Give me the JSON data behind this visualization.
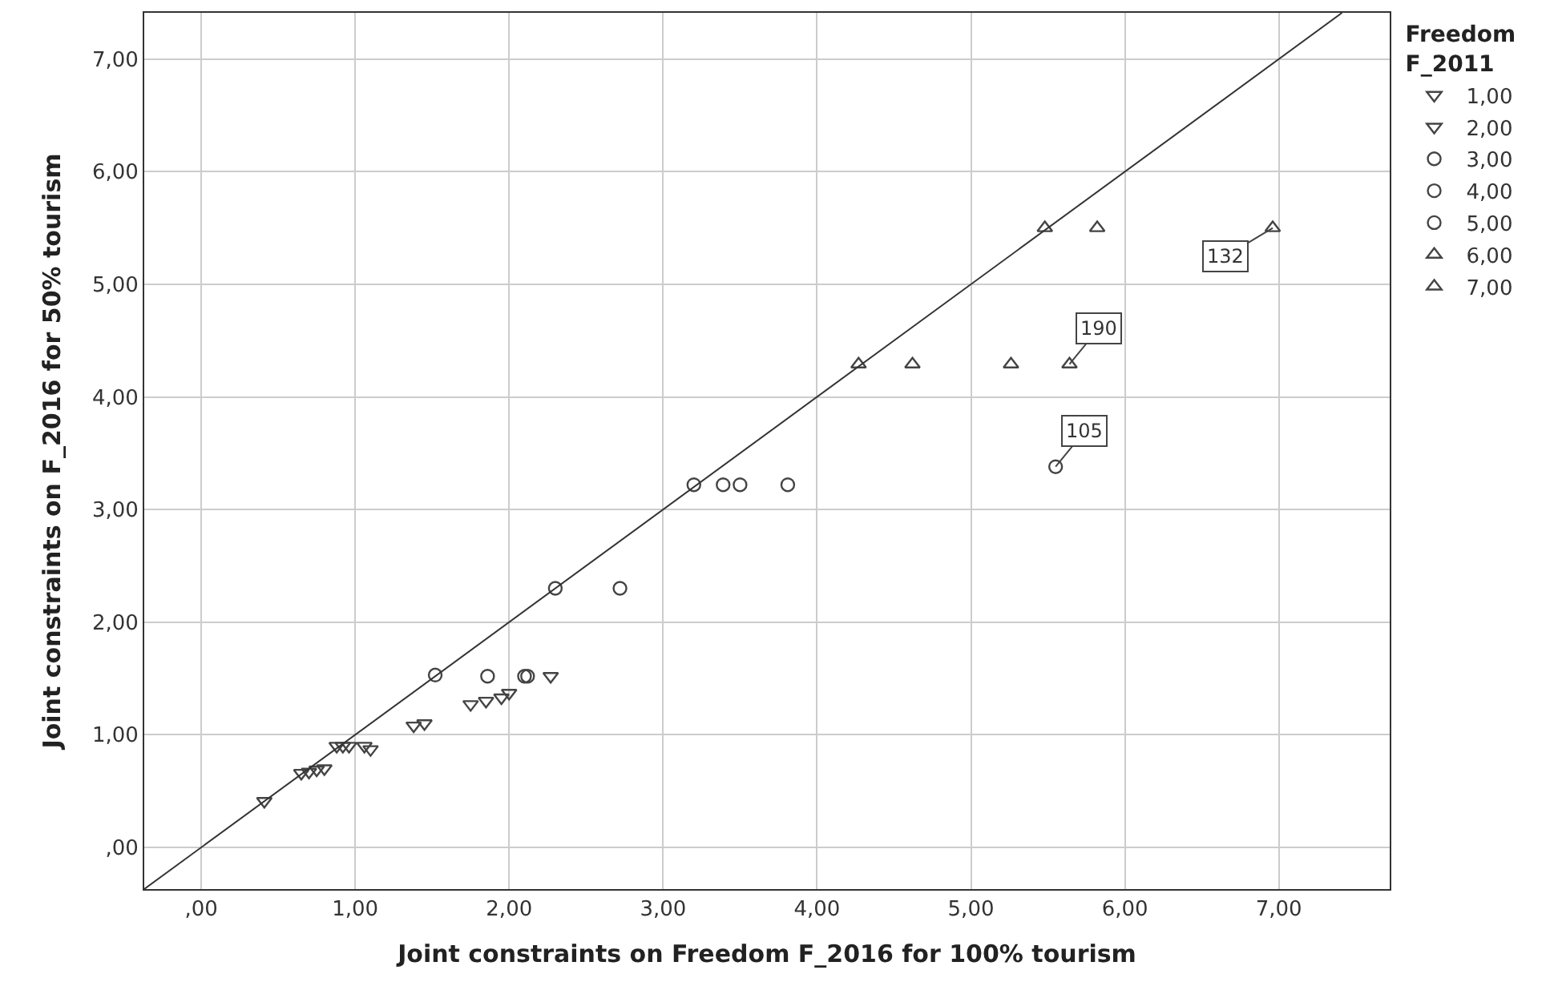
{
  "chart_data": {
    "type": "scatter",
    "xlabel": "Joint constraints on Freedom F_2016 for 100% tourism",
    "ylabel": "Joint constraints on F_2016 for 50% tourism",
    "legend_title": "Freedom\nF_2011",
    "legend": "top right",
    "grid": true,
    "xlim": [
      -0.37,
      7.72
    ],
    "ylim": [
      -0.37,
      7.41
    ],
    "xticks": [
      {
        "value": 0,
        "label": ",00"
      },
      {
        "value": 1,
        "label": "1,00"
      },
      {
        "value": 2,
        "label": "2,00"
      },
      {
        "value": 3,
        "label": "3,00"
      },
      {
        "value": 4,
        "label": "4,00"
      },
      {
        "value": 5,
        "label": "5,00"
      },
      {
        "value": 6,
        "label": "6,00"
      },
      {
        "value": 7,
        "label": "7,00"
      }
    ],
    "yticks": [
      {
        "value": 0,
        "label": ",00"
      },
      {
        "value": 1,
        "label": "1,00"
      },
      {
        "value": 2,
        "label": "2,00"
      },
      {
        "value": 3,
        "label": "3,00"
      },
      {
        "value": 4,
        "label": "4,00"
      },
      {
        "value": 5,
        "label": "5,00"
      },
      {
        "value": 6,
        "label": "6,00"
      },
      {
        "value": 7,
        "label": "7,00"
      }
    ],
    "series": [
      {
        "name": "1,00",
        "color": "#444444",
        "marker": "triangle-down",
        "x": [
          0.41,
          0.65,
          0.7,
          0.75,
          0.8
        ],
        "values": [
          0.41,
          0.66,
          0.67,
          0.69,
          0.7
        ]
      },
      {
        "name": "2,00",
        "color": "#444444",
        "marker": "triangle-down",
        "x": [
          0.88,
          0.92,
          0.96,
          1.06,
          1.1,
          1.38,
          1.45,
          1.75,
          1.85,
          1.95,
          2.0,
          2.27
        ],
        "values": [
          0.9,
          0.9,
          0.9,
          0.9,
          0.87,
          1.08,
          1.1,
          1.27,
          1.3,
          1.33,
          1.37,
          1.52
        ]
      },
      {
        "name": "3,00",
        "color": "#444444",
        "marker": "circle",
        "x": [
          1.52,
          1.86,
          2.1,
          2.12
        ],
        "values": [
          1.53,
          1.52,
          1.52,
          1.52
        ]
      },
      {
        "name": "4,00",
        "color": "#444444",
        "marker": "circle",
        "x": [
          2.3,
          2.72
        ],
        "values": [
          2.3,
          2.3
        ]
      },
      {
        "name": "5,00",
        "color": "#444444",
        "marker": "circle",
        "x": [
          3.2,
          3.39,
          3.5,
          3.81,
          5.55
        ],
        "values": [
          3.22,
          3.22,
          3.22,
          3.22,
          3.38
        ]
      },
      {
        "name": "6,00",
        "color": "#444444",
        "marker": "triangle",
        "x": [
          4.27,
          4.62,
          5.26,
          5.64
        ],
        "values": [
          4.29,
          4.29,
          4.29,
          4.29
        ]
      },
      {
        "name": "7,00",
        "color": "#444444",
        "marker": "triangle",
        "x": [
          5.48,
          5.82,
          6.96
        ],
        "values": [
          5.5,
          5.5,
          5.5
        ]
      },
      {
        "type": "line",
        "color": "#333333",
        "line_style": "solid",
        "x": [
          -0.37,
          7.41
        ],
        "values": [
          -0.37,
          7.41
        ]
      }
    ],
    "annotations": [
      {
        "text": "132",
        "x": 6.96,
        "y": 5.5
      },
      {
        "text": "190",
        "x": 5.64,
        "y": 4.29
      },
      {
        "text": "105",
        "x": 5.55,
        "y": 3.38
      }
    ]
  }
}
